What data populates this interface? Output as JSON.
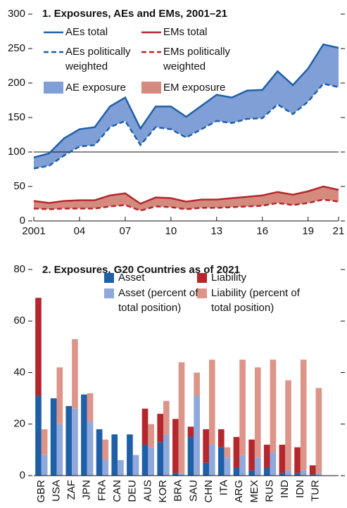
{
  "chart_data": [
    {
      "type": "line",
      "title": "1. Exposures, AEs and EMs, 2001–21",
      "x": [
        2001,
        2002,
        2003,
        2004,
        2005,
        2006,
        2007,
        2008,
        2009,
        2010,
        2011,
        2012,
        2013,
        2014,
        2015,
        2016,
        2017,
        2018,
        2019,
        2020,
        2021
      ],
      "xlim": [
        2001,
        2021
      ],
      "xticks": [
        {
          "value": 2001,
          "label": "2001"
        },
        {
          "value": 2004,
          "label": "04"
        },
        {
          "value": 2007,
          "label": "07"
        },
        {
          "value": 2010,
          "label": "10"
        },
        {
          "value": 2013,
          "label": "13"
        },
        {
          "value": 2016,
          "label": "16"
        },
        {
          "value": 2019,
          "label": "19"
        },
        {
          "value": 2021,
          "label": "21"
        }
      ],
      "ylim": [
        0,
        300
      ],
      "yticks": [
        0,
        50,
        100,
        150,
        200,
        250,
        300
      ],
      "reference_line": 100,
      "series": [
        {
          "name": "AEs total",
          "color": "#1f5fa8",
          "dash": false,
          "values": [
            92,
            98,
            120,
            133,
            136,
            166,
            179,
            134,
            166,
            166,
            151,
            167,
            183,
            179,
            189,
            190,
            217,
            197,
            221,
            256,
            251
          ]
        },
        {
          "name": "AEs politically weighted",
          "color": "#1f5fa8",
          "dash": true,
          "values": [
            76,
            80,
            95,
            108,
            110,
            136,
            145,
            110,
            136,
            133,
            121,
            133,
            145,
            142,
            148,
            149,
            169,
            155,
            173,
            199,
            194
          ]
        },
        {
          "name": "EMs total",
          "color": "#b5272d",
          "dash": false,
          "values": [
            29,
            26,
            29,
            30,
            30,
            37,
            40,
            25,
            34,
            33,
            28,
            31,
            31,
            33,
            35,
            37,
            42,
            38,
            43,
            50,
            45
          ]
        },
        {
          "name": "EMs politically weighted",
          "color": "#b5272d",
          "dash": true,
          "values": [
            18,
            17,
            18,
            18,
            18,
            21,
            23,
            15,
            21,
            20,
            17,
            19,
            19,
            20,
            21,
            22,
            26,
            23,
            26,
            31,
            28
          ]
        }
      ],
      "fills": [
        {
          "name": "AE exposure",
          "color": "#7f9fd6"
        },
        {
          "name": "EM exposure",
          "color": "#d48b7d"
        }
      ]
    },
    {
      "type": "bar",
      "title": "2. Exposures, G20 Countries as of 2021",
      "categories": [
        "GBR",
        "USA",
        "ZAF",
        "JPN",
        "FRA",
        "CAN",
        "DEU",
        "AUS",
        "KOR",
        "BRA",
        "SAU",
        "CHN",
        "ITA",
        "ARG",
        "MEX",
        "RUS",
        "IND",
        "IDN",
        "TUR"
      ],
      "ylim": [
        0,
        80
      ],
      "yticks": [
        0,
        20,
        40,
        60,
        80
      ],
      "series": [
        {
          "name": "Asset",
          "color": "#1f5fa8",
          "values": [
            31,
            30,
            27,
            31.5,
            18,
            16,
            16,
            12,
            13,
            1,
            15,
            5,
            11,
            3,
            2,
            3,
            1,
            1,
            0.5
          ]
        },
        {
          "name": "Liability",
          "color": "#b5272d",
          "values": [
            38,
            0,
            0,
            0,
            0,
            0,
            0,
            14,
            11,
            21,
            4,
            13,
            7,
            12,
            12,
            9,
            11,
            10,
            3.5
          ]
        },
        {
          "name": "Asset (percent of total position)",
          "color": "#8fa9dc",
          "values": [
            8,
            20,
            26,
            21,
            6,
            6,
            8,
            11,
            16,
            1,
            31,
            12,
            7,
            8,
            7,
            9,
            2,
            2,
            1
          ]
        },
        {
          "name": "Liability (percent of total position)",
          "color": "#dd958a",
          "values": [
            10,
            22,
            27,
            11,
            8,
            0,
            0,
            9,
            13,
            43,
            9,
            33,
            4,
            37,
            35,
            36,
            35,
            43,
            33
          ]
        }
      ]
    }
  ]
}
